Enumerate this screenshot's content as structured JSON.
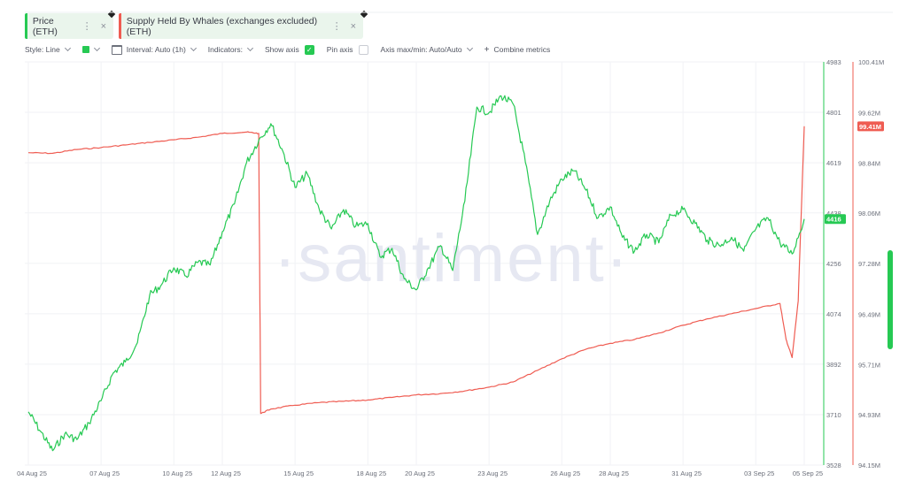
{
  "tabs": [
    {
      "label": "Price (ETH)",
      "color": "#26c953"
    },
    {
      "label": "Supply Held By Whales (exchanges excluded) (ETH)",
      "color": "#ef5c52"
    }
  ],
  "toolbar": {
    "style_label": "Style: Line",
    "interval_label": "Interval: Auto (1h)",
    "indicators_label": "Indicators:",
    "show_axis_label": "Show axis",
    "pin_axis_label": "Pin axis",
    "axis_maxmin_label": "Axis max/min: Auto/Auto",
    "combine_label": "Combine metrics"
  },
  "watermark": "·santiment·",
  "chart_data": {
    "type": "line",
    "x_tick_labels": [
      "04 Aug 25",
      "07 Aug 25",
      "10 Aug 25",
      "12 Aug 25",
      "15 Aug 25",
      "18 Aug 25",
      "20 Aug 25",
      "23 Aug 25",
      "26 Aug 25",
      "28 Aug 25",
      "31 Aug 25",
      "03 Sep 25",
      "05 Sep 25"
    ],
    "grid": true,
    "series": [
      {
        "name": "Price (ETH)",
        "color": "#26c953",
        "axis": "right-inner",
        "ylim": [
          3528,
          4983
        ],
        "tick_labels": [
          "4983",
          "4801",
          "4619",
          "4438",
          "4256",
          "4074",
          "3892",
          "3710",
          "3528"
        ],
        "last_value_label": "4416",
        "x": [
          "2025-08-04",
          "2025-08-04 12:00",
          "2025-08-05",
          "2025-08-05 12:00",
          "2025-08-06",
          "2025-08-06 12:00",
          "2025-08-07",
          "2025-08-07 12:00",
          "2025-08-08",
          "2025-08-08 12:00",
          "2025-08-09",
          "2025-08-09 12:00",
          "2025-08-10",
          "2025-08-10 12:00",
          "2025-08-11",
          "2025-08-11 12:00",
          "2025-08-12",
          "2025-08-12 12:00",
          "2025-08-13",
          "2025-08-13 12:00",
          "2025-08-14",
          "2025-08-14 12:00",
          "2025-08-15",
          "2025-08-15 12:00",
          "2025-08-16",
          "2025-08-16 12:00",
          "2025-08-17",
          "2025-08-17 12:00",
          "2025-08-18",
          "2025-08-18 12:00",
          "2025-08-19",
          "2025-08-19 12:00",
          "2025-08-20",
          "2025-08-20 12:00",
          "2025-08-21",
          "2025-08-21 12:00",
          "2025-08-22",
          "2025-08-22 12:00",
          "2025-08-23",
          "2025-08-23 12:00",
          "2025-08-24",
          "2025-08-24 12:00",
          "2025-08-25",
          "2025-08-25 12:00",
          "2025-08-26",
          "2025-08-26 12:00",
          "2025-08-27",
          "2025-08-27 12:00",
          "2025-08-28",
          "2025-08-28 12:00",
          "2025-08-29",
          "2025-08-29 12:00",
          "2025-08-30",
          "2025-08-30 12:00",
          "2025-08-31",
          "2025-08-31 12:00",
          "2025-09-01",
          "2025-09-01 12:00",
          "2025-09-02",
          "2025-09-02 12:00",
          "2025-09-03",
          "2025-09-03 12:00",
          "2025-09-04",
          "2025-09-04 12:00",
          "2025-09-05"
        ],
        "values": [
          3720,
          3650,
          3580,
          3640,
          3620,
          3680,
          3760,
          3860,
          3900,
          3970,
          4140,
          4180,
          4240,
          4210,
          4260,
          4250,
          4370,
          4470,
          4620,
          4700,
          4760,
          4660,
          4530,
          4580,
          4450,
          4380,
          4450,
          4390,
          4400,
          4280,
          4310,
          4200,
          4160,
          4240,
          4320,
          4230,
          4480,
          4820,
          4800,
          4860,
          4830,
          4620,
          4360,
          4480,
          4560,
          4590,
          4520,
          4420,
          4460,
          4350,
          4300,
          4360,
          4330,
          4430,
          4450,
          4400,
          4340,
          4320,
          4350,
          4300,
          4380,
          4420,
          4330,
          4290,
          4416
        ]
      },
      {
        "name": "Supply Held By Whales (exchanges excluded) (ETH)",
        "color": "#ef5c52",
        "axis": "right-outer",
        "ylim": [
          94.15,
          100.41
        ],
        "unit": "M",
        "tick_labels": [
          "100.41M",
          "99.62M",
          "98.84M",
          "98.06M",
          "97.28M",
          "96.49M",
          "95.71M",
          "94.93M",
          "94.15M"
        ],
        "last_value_label": "99.41M",
        "x": [
          "2025-08-04",
          "2025-08-05",
          "2025-08-06",
          "2025-08-07",
          "2025-08-08",
          "2025-08-09",
          "2025-08-10",
          "2025-08-11",
          "2025-08-12",
          "2025-08-13",
          "2025-08-13 12:00",
          "2025-08-13 14:00",
          "2025-08-14",
          "2025-08-15",
          "2025-08-16",
          "2025-08-17",
          "2025-08-18",
          "2025-08-19",
          "2025-08-20",
          "2025-08-21",
          "2025-08-22",
          "2025-08-23",
          "2025-08-24",
          "2025-08-25",
          "2025-08-26",
          "2025-08-27",
          "2025-08-28",
          "2025-08-29",
          "2025-08-30",
          "2025-08-31",
          "2025-09-01",
          "2025-09-02",
          "2025-09-03",
          "2025-09-04",
          "2025-09-04 06:00",
          "2025-09-04 12:00",
          "2025-09-04 18:00",
          "2025-09-05"
        ],
        "values": [
          99.0,
          98.99,
          99.05,
          99.08,
          99.12,
          99.16,
          99.2,
          99.24,
          99.3,
          99.32,
          99.3,
          94.95,
          95.02,
          95.08,
          95.12,
          95.14,
          95.16,
          95.2,
          95.24,
          95.26,
          95.3,
          95.36,
          95.44,
          95.62,
          95.8,
          95.95,
          96.04,
          96.1,
          96.2,
          96.32,
          96.42,
          96.5,
          96.58,
          96.66,
          96.1,
          95.82,
          96.7,
          99.41
        ]
      }
    ]
  }
}
